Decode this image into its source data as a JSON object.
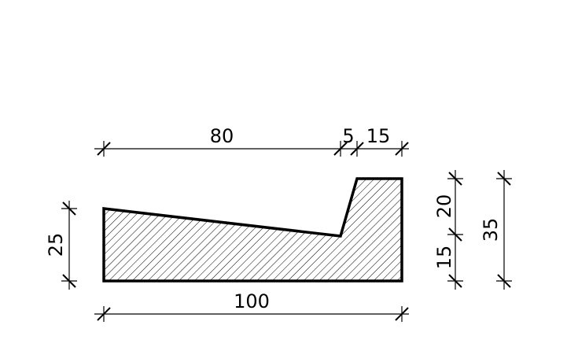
{
  "dimensions": {
    "top_left": "80",
    "top_middle": "5",
    "top_right": "15",
    "bottom": "100",
    "left": "25",
    "right_upper": "20",
    "right_lower": "15",
    "far_right": "35"
  },
  "colors": {
    "line": "#000000",
    "background": "#ffffff"
  }
}
